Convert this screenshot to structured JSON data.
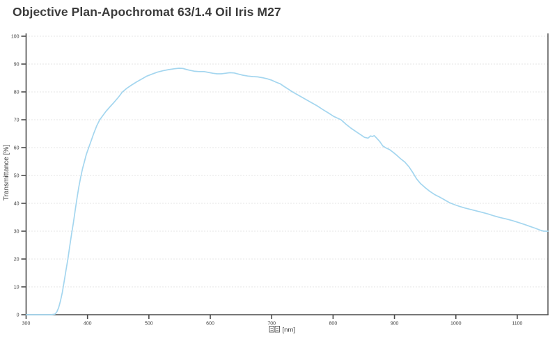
{
  "title": "Objective Plan-Apochromat 63/1.4 Oil Iris M27",
  "chart_data": {
    "type": "line",
    "title": "Objective Plan-Apochromat 63/1.4 Oil Iris M27",
    "xlabel": "□□ [nm]",
    "xlabel_unit": "[nm]",
    "ylabel": "Transmittance [%]",
    "xlim": [
      300,
      1150
    ],
    "ylim": [
      0,
      100
    ],
    "x_ticks": [
      300,
      400,
      500,
      600,
      700,
      800,
      900,
      1000,
      1100
    ],
    "y_ticks": [
      0,
      10,
      20,
      30,
      40,
      50,
      60,
      70,
      80,
      90,
      100
    ],
    "grid": {
      "horizontal": true,
      "vertical": false,
      "style": "dotted",
      "color": "#c9c9c9"
    },
    "legend": "none",
    "series": [
      {
        "name": "Transmittance",
        "color": "#a4d6ef",
        "points": [
          [
            300,
            0
          ],
          [
            340,
            0
          ],
          [
            347,
            0.2
          ],
          [
            350,
            1
          ],
          [
            353,
            2.5
          ],
          [
            356,
            5
          ],
          [
            359,
            8
          ],
          [
            362,
            12
          ],
          [
            365,
            16
          ],
          [
            368,
            20
          ],
          [
            371,
            24.5
          ],
          [
            374,
            29
          ],
          [
            377,
            33
          ],
          [
            380,
            37.5
          ],
          [
            383,
            42
          ],
          [
            386,
            46
          ],
          [
            389,
            49.5
          ],
          [
            392,
            52.5
          ],
          [
            395,
            55
          ],
          [
            398,
            57.5
          ],
          [
            402,
            60
          ],
          [
            406,
            62.5
          ],
          [
            410,
            65
          ],
          [
            415,
            67.8
          ],
          [
            420,
            70
          ],
          [
            425,
            71.5
          ],
          [
            430,
            73
          ],
          [
            436,
            74.5
          ],
          [
            443,
            76.2
          ],
          [
            450,
            78
          ],
          [
            457,
            80
          ],
          [
            464,
            81.3
          ],
          [
            472,
            82.5
          ],
          [
            480,
            83.6
          ],
          [
            488,
            84.6
          ],
          [
            496,
            85.6
          ],
          [
            505,
            86.4
          ],
          [
            514,
            87.1
          ],
          [
            523,
            87.6
          ],
          [
            532,
            88
          ],
          [
            541,
            88.3
          ],
          [
            549,
            88.5
          ],
          [
            556,
            88.4
          ],
          [
            562,
            88
          ],
          [
            568,
            87.7
          ],
          [
            575,
            87.4
          ],
          [
            582,
            87.3
          ],
          [
            590,
            87.3
          ],
          [
            597,
            87
          ],
          [
            604,
            86.7
          ],
          [
            611,
            86.5
          ],
          [
            618,
            86.5
          ],
          [
            625,
            86.7
          ],
          [
            632,
            86.9
          ],
          [
            639,
            86.8
          ],
          [
            646,
            86.4
          ],
          [
            653,
            86
          ],
          [
            661,
            85.7
          ],
          [
            669,
            85.5
          ],
          [
            677,
            85.4
          ],
          [
            685,
            85.1
          ],
          [
            693,
            84.7
          ],
          [
            700,
            84.2
          ],
          [
            707,
            83.5
          ],
          [
            714,
            82.9
          ],
          [
            720,
            82
          ],
          [
            727,
            81
          ],
          [
            734,
            80
          ],
          [
            742,
            79
          ],
          [
            750,
            78
          ],
          [
            758,
            77
          ],
          [
            766,
            76
          ],
          [
            774,
            75
          ],
          [
            783,
            73.7
          ],
          [
            792,
            72.5
          ],
          [
            801,
            71.2
          ],
          [
            807,
            70.6
          ],
          [
            813,
            70
          ],
          [
            821,
            68.4
          ],
          [
            829,
            67
          ],
          [
            837,
            65.8
          ],
          [
            845,
            64.6
          ],
          [
            851,
            63.7
          ],
          [
            857,
            63.4
          ],
          [
            861,
            64.2
          ],
          [
            864,
            64
          ],
          [
            867,
            64.3
          ],
          [
            871,
            63.4
          ],
          [
            876,
            62.2
          ],
          [
            881,
            60.6
          ],
          [
            886,
            59.9
          ],
          [
            892,
            59.3
          ],
          [
            898,
            58.3
          ],
          [
            904,
            57.2
          ],
          [
            910,
            56
          ],
          [
            917,
            54.8
          ],
          [
            924,
            53
          ],
          [
            930,
            51
          ],
          [
            936,
            48.8
          ],
          [
            942,
            47.2
          ],
          [
            949,
            45.8
          ],
          [
            957,
            44.4
          ],
          [
            965,
            43.2
          ],
          [
            974,
            42.2
          ],
          [
            982,
            41.2
          ],
          [
            990,
            40.2
          ],
          [
            998,
            39.5
          ],
          [
            1006,
            38.9
          ],
          [
            1015,
            38.3
          ],
          [
            1024,
            37.8
          ],
          [
            1033,
            37.3
          ],
          [
            1042,
            36.8
          ],
          [
            1052,
            36.2
          ],
          [
            1062,
            35.5
          ],
          [
            1072,
            34.9
          ],
          [
            1082,
            34.4
          ],
          [
            1092,
            33.8
          ],
          [
            1102,
            33.1
          ],
          [
            1112,
            32.4
          ],
          [
            1122,
            31.6
          ],
          [
            1130,
            31
          ],
          [
            1137,
            30.4
          ],
          [
            1143,
            30
          ],
          [
            1150,
            30
          ]
        ]
      }
    ]
  },
  "colors": {
    "background": "#ffffff",
    "axis": "#4a4a4a",
    "tick_label": "#3d3d3d",
    "title": "#3b3b3b",
    "grid": "#c9c9c9",
    "curve": "#a4d6ef"
  }
}
